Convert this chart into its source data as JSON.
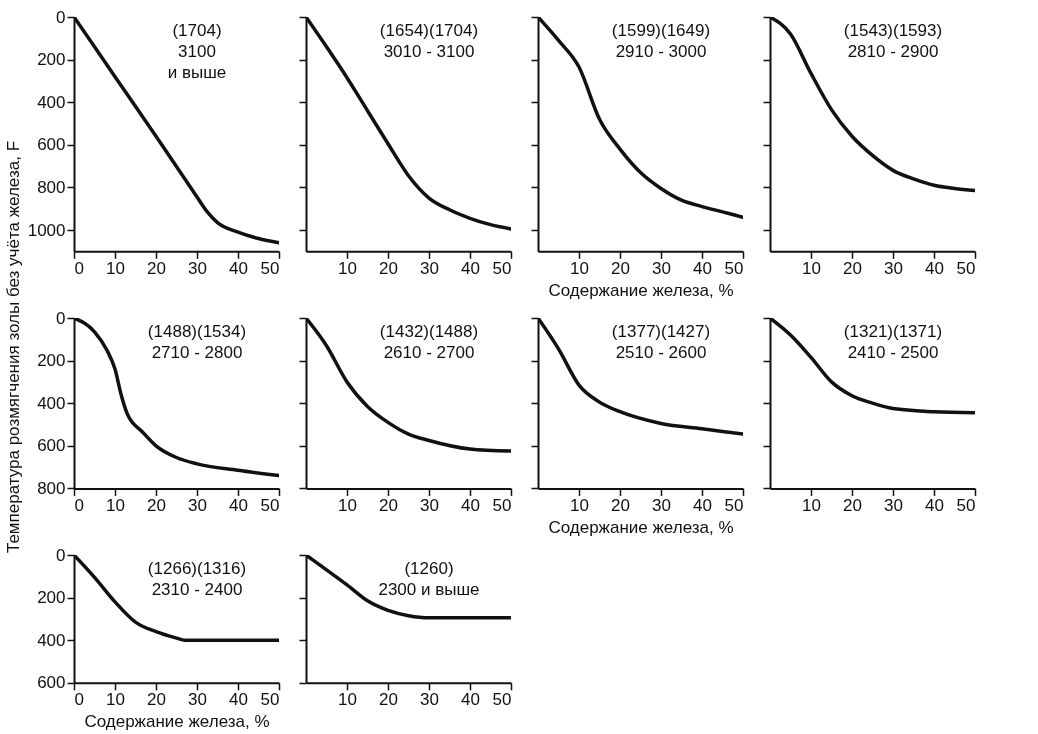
{
  "chart_data": [
    {
      "type": "line",
      "x": [
        0,
        10,
        20,
        30,
        32.5,
        35,
        40,
        45,
        50
      ],
      "values": [
        0,
        280,
        560,
        845,
        915,
        965,
        1010,
        1040,
        1060
      ],
      "color": "#111111",
      "xlim": [
        0,
        50
      ],
      "xticks": [
        0,
        10,
        20,
        30,
        40,
        50
      ],
      "ylim": [
        1100,
        0
      ],
      "yticks": [
        0,
        200,
        400,
        600,
        800,
        1000
      ],
      "annotations": [
        "(1704)\n3100\nи выше"
      ],
      "ylabel": "Температура розмягчения золы без учёта  железа, F"
    },
    {
      "type": "line",
      "x": [
        0,
        5,
        10,
        15,
        20,
        25,
        30,
        35,
        40,
        45,
        50
      ],
      "values": [
        0,
        140,
        285,
        440,
        595,
        745,
        850,
        905,
        945,
        975,
        995
      ],
      "color": "#111111",
      "xlim": [
        0,
        50
      ],
      "xticks": [
        10,
        20,
        30,
        40,
        50
      ],
      "ylim": [
        1100,
        0
      ],
      "yticks": [
        0,
        200,
        400,
        600,
        800,
        1000
      ],
      "tick_labels": "x",
      "annotations": [
        "(1654)(1704)\n3010 - 3100"
      ]
    },
    {
      "type": "line",
      "x": [
        0,
        5,
        10,
        15,
        20,
        25,
        30,
        35,
        40,
        45,
        50
      ],
      "values": [
        0,
        110,
        235,
        480,
        620,
        730,
        805,
        860,
        890,
        915,
        940
      ],
      "color": "#111111",
      "xlim": [
        0,
        50
      ],
      "xticks": [
        10,
        20,
        30,
        40,
        50
      ],
      "ylim": [
        1100,
        0
      ],
      "yticks": [
        0,
        200,
        400,
        600,
        800,
        1000
      ],
      "tick_labels": "x",
      "annotations": [
        "(1599)(1649)\n2910 - 3000"
      ],
      "xlabel": "Содержание железа, %"
    },
    {
      "type": "line",
      "x": [
        0,
        5,
        10,
        15,
        20,
        25,
        30,
        35,
        40,
        45,
        50
      ],
      "values": [
        0,
        80,
        265,
        435,
        560,
        650,
        720,
        760,
        790,
        805,
        815
      ],
      "color": "#111111",
      "xlim": [
        0,
        50
      ],
      "xticks": [
        10,
        20,
        30,
        40,
        50
      ],
      "ylim": [
        1100,
        0
      ],
      "yticks": [
        0,
        200,
        400,
        600,
        800,
        1000
      ],
      "tick_labels": "x",
      "annotations": [
        "(1543)(1593)\n2810 - 2900"
      ]
    },
    {
      "type": "line",
      "x": [
        0,
        5,
        8,
        10,
        11.5,
        13,
        16.7,
        20,
        25,
        30,
        40,
        50
      ],
      "values": [
        0,
        65,
        150,
        240,
        360,
        450,
        535,
        600,
        655,
        685,
        715,
        740
      ],
      "color": "#111111",
      "xlim": [
        0,
        50
      ],
      "xticks": [
        0,
        10,
        20,
        30,
        40,
        50
      ],
      "ylim": [
        800,
        0
      ],
      "yticks": [
        0,
        200,
        400,
        600,
        800
      ],
      "annotations": [
        "(1488)(1534)\n2710 - 2800"
      ]
    },
    {
      "type": "line",
      "x": [
        0,
        5,
        10,
        15,
        20,
        25,
        30,
        40,
        50
      ],
      "values": [
        0,
        130,
        300,
        415,
        490,
        545,
        575,
        615,
        625
      ],
      "color": "#111111",
      "xlim": [
        0,
        50
      ],
      "xticks": [
        10,
        20,
        30,
        40,
        50
      ],
      "ylim": [
        800,
        0
      ],
      "yticks": [
        0,
        200,
        400,
        600,
        800
      ],
      "tick_labels": "x",
      "annotations": [
        "(1432)(1488)\n2610 - 2700"
      ]
    },
    {
      "type": "line",
      "x": [
        0,
        5,
        10,
        15,
        20,
        30,
        40,
        50
      ],
      "values": [
        0,
        145,
        315,
        395,
        440,
        495,
        520,
        545
      ],
      "color": "#111111",
      "xlim": [
        0,
        50
      ],
      "xticks": [
        10,
        20,
        30,
        40,
        50
      ],
      "ylim": [
        800,
        0
      ],
      "yticks": [
        0,
        200,
        400,
        600,
        800
      ],
      "tick_labels": "x",
      "annotations": [
        "(1377)(1427)\n2510 - 2600"
      ],
      "xlabel": "Содержание железа, %"
    },
    {
      "type": "line",
      "x": [
        0,
        5,
        10,
        15,
        20,
        25,
        30,
        40,
        50
      ],
      "values": [
        0,
        80,
        185,
        300,
        365,
        400,
        425,
        440,
        445
      ],
      "color": "#111111",
      "xlim": [
        0,
        50
      ],
      "xticks": [
        10,
        20,
        30,
        40,
        50
      ],
      "ylim": [
        800,
        0
      ],
      "yticks": [
        0,
        200,
        400,
        600,
        800
      ],
      "tick_labels": "x",
      "annotations": [
        "(1321)(1371)\n2410 - 2500"
      ]
    },
    {
      "type": "line",
      "x": [
        0,
        5,
        10,
        15,
        20,
        25,
        27,
        30,
        40,
        50
      ],
      "values": [
        0,
        105,
        220,
        315,
        360,
        390,
        400,
        400,
        400,
        400
      ],
      "color": "#111111",
      "xlim": [
        0,
        50
      ],
      "xticks": [
        0,
        10,
        20,
        30,
        40,
        50
      ],
      "ylim": [
        600,
        0
      ],
      "yticks": [
        0,
        200,
        400,
        600
      ],
      "annotations": [
        "(1266)(1316)\n2310 - 2400"
      ],
      "xlabel": "Содержание железа, %"
    },
    {
      "type": "line",
      "x": [
        0,
        5,
        10,
        15,
        20,
        25,
        30,
        40,
        50
      ],
      "values": [
        0,
        70,
        140,
        215,
        260,
        285,
        295,
        295,
        295
      ],
      "color": "#111111",
      "xlim": [
        0,
        50
      ],
      "xticks": [
        10,
        20,
        30,
        40,
        50
      ],
      "ylim": [
        600,
        0
      ],
      "yticks": [
        0,
        200,
        400,
        600
      ],
      "tick_labels": "x",
      "annotations": [
        "(1260)\n2300  и выше"
      ]
    }
  ]
}
